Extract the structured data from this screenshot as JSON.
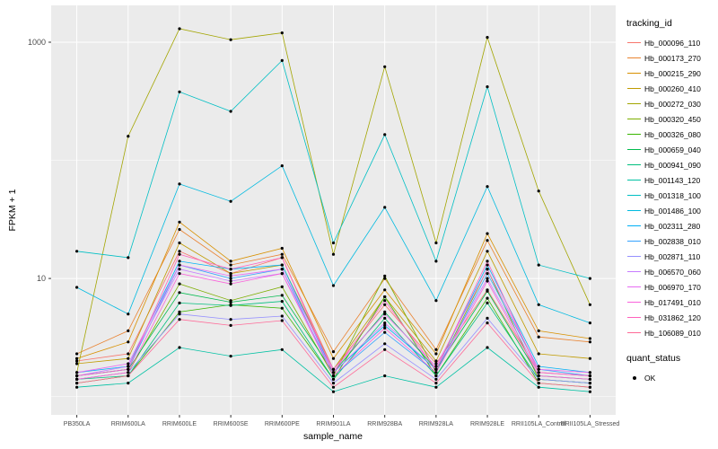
{
  "style": {
    "panel_bg": "#EBEBEB",
    "grid_color": "#FFFFFF",
    "tick_color": "#333333",
    "tick_label_color": "#4D4D4D",
    "point_color": "#000000",
    "axis_title_color": "#000000"
  },
  "legend": {
    "title": "tracking_id"
  },
  "quant_legend": {
    "title": "quant_status",
    "items": [
      "OK"
    ]
  },
  "chart_data": {
    "type": "line",
    "title": "",
    "xlabel": "sample_name",
    "ylabel": "FPKM + 1",
    "y_scale": "log10",
    "ylim": [
      0.7,
      2050
    ],
    "y_ticks": [
      10,
      1000
    ],
    "y_tick_labels": [
      "10",
      "1000"
    ],
    "y_minor_gridlines": [
      1,
      100
    ],
    "grid": true,
    "legend_position": "right",
    "point_shape": "filled-circle-black",
    "categories": [
      "PB350LA",
      "RRIM600LA",
      "RRIM600LE",
      "RRIM600SE",
      "RRIM600PE",
      "RRIM901LA",
      "RRIM928BA",
      "RRIM928LA",
      "RRIM928LE",
      "RRII105LA_Control",
      "RRII105LA_Stressed"
    ],
    "series": [
      {
        "name": "Hb_000096_110",
        "color": "#F8766D",
        "values": [
          2.0,
          2.3,
          17,
          11,
          15,
          1.7,
          6.0,
          1.9,
          8.0,
          1.6,
          1.5
        ]
      },
      {
        "name": "Hb_000173_270",
        "color": "#EA8331",
        "values": [
          2.3,
          3.6,
          26,
          13,
          16,
          2.4,
          10.0,
          2.5,
          21,
          3.2,
          2.9
        ]
      },
      {
        "name": "Hb_000215_290",
        "color": "#D89000",
        "values": [
          2.1,
          2.9,
          30,
          14,
          18,
          2.1,
          8.0,
          2.3,
          24,
          3.6,
          3.1
        ]
      },
      {
        "name": "Hb_000260_410",
        "color": "#C09B00",
        "values": [
          1.9,
          2.1,
          20,
          11,
          13,
          1.7,
          7.0,
          2.0,
          17,
          2.3,
          2.1
        ]
      },
      {
        "name": "Hb_000272_030",
        "color": "#A3A500",
        "values": [
          1.6,
          160,
          1300,
          1050,
          1200,
          16,
          620,
          20,
          1100,
          55,
          6.0
        ]
      },
      {
        "name": "Hb_000320_450",
        "color": "#7CAE00",
        "values": [
          1.4,
          1.6,
          9.0,
          6.5,
          8.5,
          1.5,
          10.5,
          1.6,
          12,
          1.4,
          1.3
        ]
      },
      {
        "name": "Hb_000326_080",
        "color": "#39B600",
        "values": [
          1.3,
          1.5,
          5.2,
          6.0,
          5.6,
          1.4,
          7.0,
          1.5,
          6.8,
          1.3,
          1.2
        ]
      },
      {
        "name": "Hb_000659_040",
        "color": "#00BB4E",
        "values": [
          1.5,
          1.7,
          7.6,
          6.3,
          7.2,
          1.6,
          5.2,
          1.7,
          7.8,
          1.5,
          1.4
        ]
      },
      {
        "name": "Hb_000941_090",
        "color": "#00BF7D",
        "values": [
          1.4,
          1.5,
          6.2,
          5.9,
          6.4,
          1.4,
          4.6,
          1.5,
          6.2,
          1.4,
          1.3
        ]
      },
      {
        "name": "Hb_001143_120",
        "color": "#00C1A3",
        "values": [
          1.2,
          1.3,
          2.6,
          2.2,
          2.5,
          1.1,
          1.5,
          1.2,
          2.6,
          1.2,
          1.1
        ]
      },
      {
        "name": "Hb_001318_100",
        "color": "#00BFC4",
        "values": [
          17,
          15,
          380,
          260,
          700,
          20,
          165,
          14,
          420,
          13,
          10
        ]
      },
      {
        "name": "Hb_001486_100",
        "color": "#00BAE0",
        "values": [
          8.4,
          5.0,
          63,
          45,
          90,
          8.7,
          40,
          6.5,
          60,
          6.0,
          4.2
        ]
      },
      {
        "name": "Hb_002311_280",
        "color": "#00B0F6",
        "values": [
          1.6,
          1.8,
          14,
          12,
          13,
          1.6,
          4.0,
          1.7,
          13,
          1.8,
          1.6
        ]
      },
      {
        "name": "Hb_002838_010",
        "color": "#35A2FF",
        "values": [
          1.5,
          1.7,
          13,
          10,
          12,
          1.5,
          3.5,
          1.6,
          11,
          1.7,
          1.5
        ]
      },
      {
        "name": "Hb_002871_110",
        "color": "#9590FF",
        "values": [
          1.4,
          1.6,
          5.0,
          4.5,
          4.8,
          1.3,
          2.8,
          1.4,
          4.6,
          1.4,
          1.3
        ]
      },
      {
        "name": "Hb_006570_060",
        "color": "#C77CFF",
        "values": [
          1.5,
          1.8,
          12,
          9.5,
          11,
          1.6,
          4.2,
          1.7,
          10,
          1.6,
          1.5
        ]
      },
      {
        "name": "Hb_006970_170",
        "color": "#E76BF3",
        "values": [
          1.6,
          1.9,
          13,
          10.5,
          12,
          1.7,
          5.0,
          1.8,
          12,
          1.7,
          1.6
        ]
      },
      {
        "name": "Hb_017491_010",
        "color": "#FA62DB",
        "values": [
          1.4,
          1.6,
          11,
          9.0,
          11,
          1.5,
          3.8,
          1.6,
          9.5,
          1.5,
          1.4
        ]
      },
      {
        "name": "Hb_031862_120",
        "color": "#FF62BC",
        "values": [
          1.5,
          1.7,
          16,
          12,
          15,
          1.6,
          6.5,
          1.7,
          14,
          1.6,
          1.5
        ]
      },
      {
        "name": "Hb_106089_010",
        "color": "#FF6A98",
        "values": [
          1.3,
          1.5,
          4.5,
          4.0,
          4.4,
          1.2,
          2.5,
          1.3,
          4.2,
          1.3,
          1.2
        ]
      }
    ]
  }
}
